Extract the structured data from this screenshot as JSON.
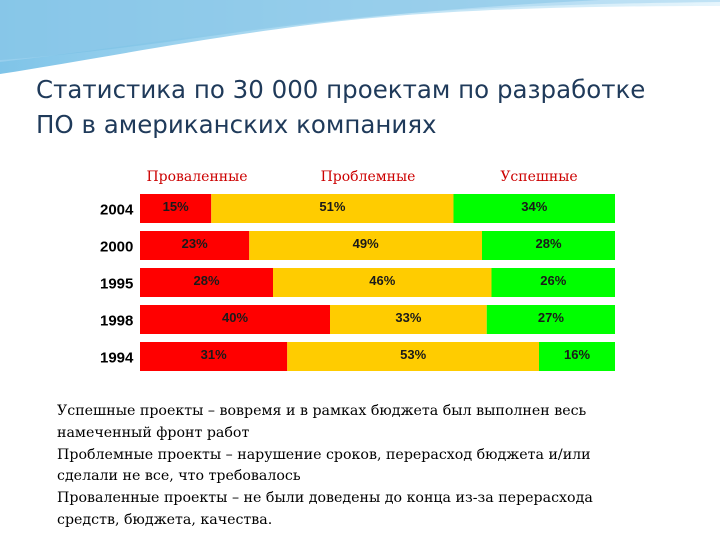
{
  "title_line1": "Статистика по 30 000 проектам по разработке",
  "title_line2": "ПО в американских компаниях",
  "colors": {
    "failed": "#ff0000",
    "challenged": "#ffcc00",
    "successful": "#00ff00",
    "legend_text": "#cc0000",
    "title": "#1f3a5a"
  },
  "chart_data": {
    "type": "bar",
    "orientation": "horizontal",
    "stacked": true,
    "normalized_to": 100,
    "categories": [
      "2004",
      "2000",
      "1995",
      "1998",
      "1994"
    ],
    "series": [
      {
        "name": "Проваленные",
        "values": [
          15,
          23,
          28,
          40,
          31
        ],
        "labels": [
          "15%",
          "23%",
          "28%",
          "40%",
          "31%"
        ]
      },
      {
        "name": "Проблемные",
        "values": [
          51,
          49,
          46,
          33,
          53
        ],
        "labels": [
          "51%",
          "49%",
          "46%",
          "33%",
          "53%"
        ]
      },
      {
        "name": "Успешные",
        "values": [
          34,
          28,
          26,
          27,
          16
        ],
        "labels": [
          "34%",
          "28%",
          "26%",
          "27%",
          "16%"
        ]
      }
    ],
    "legend_position": "top",
    "grid": false,
    "title": "",
    "xlabel": "",
    "ylabel": ""
  },
  "description": {
    "line1": "Успешные проекты – вовремя и в рамках бюджета был выполнен весь",
    "line2": "намеченный фронт работ",
    "line3": "Проблемные проекты – нарушение сроков, перерасход бюджета и/или",
    "line4": "сделали не все, что требовалось",
    "line5": "Проваленные проекты – не были доведены до конца из-за перерасхода",
    "line6": "средств, бюджета, качества."
  }
}
